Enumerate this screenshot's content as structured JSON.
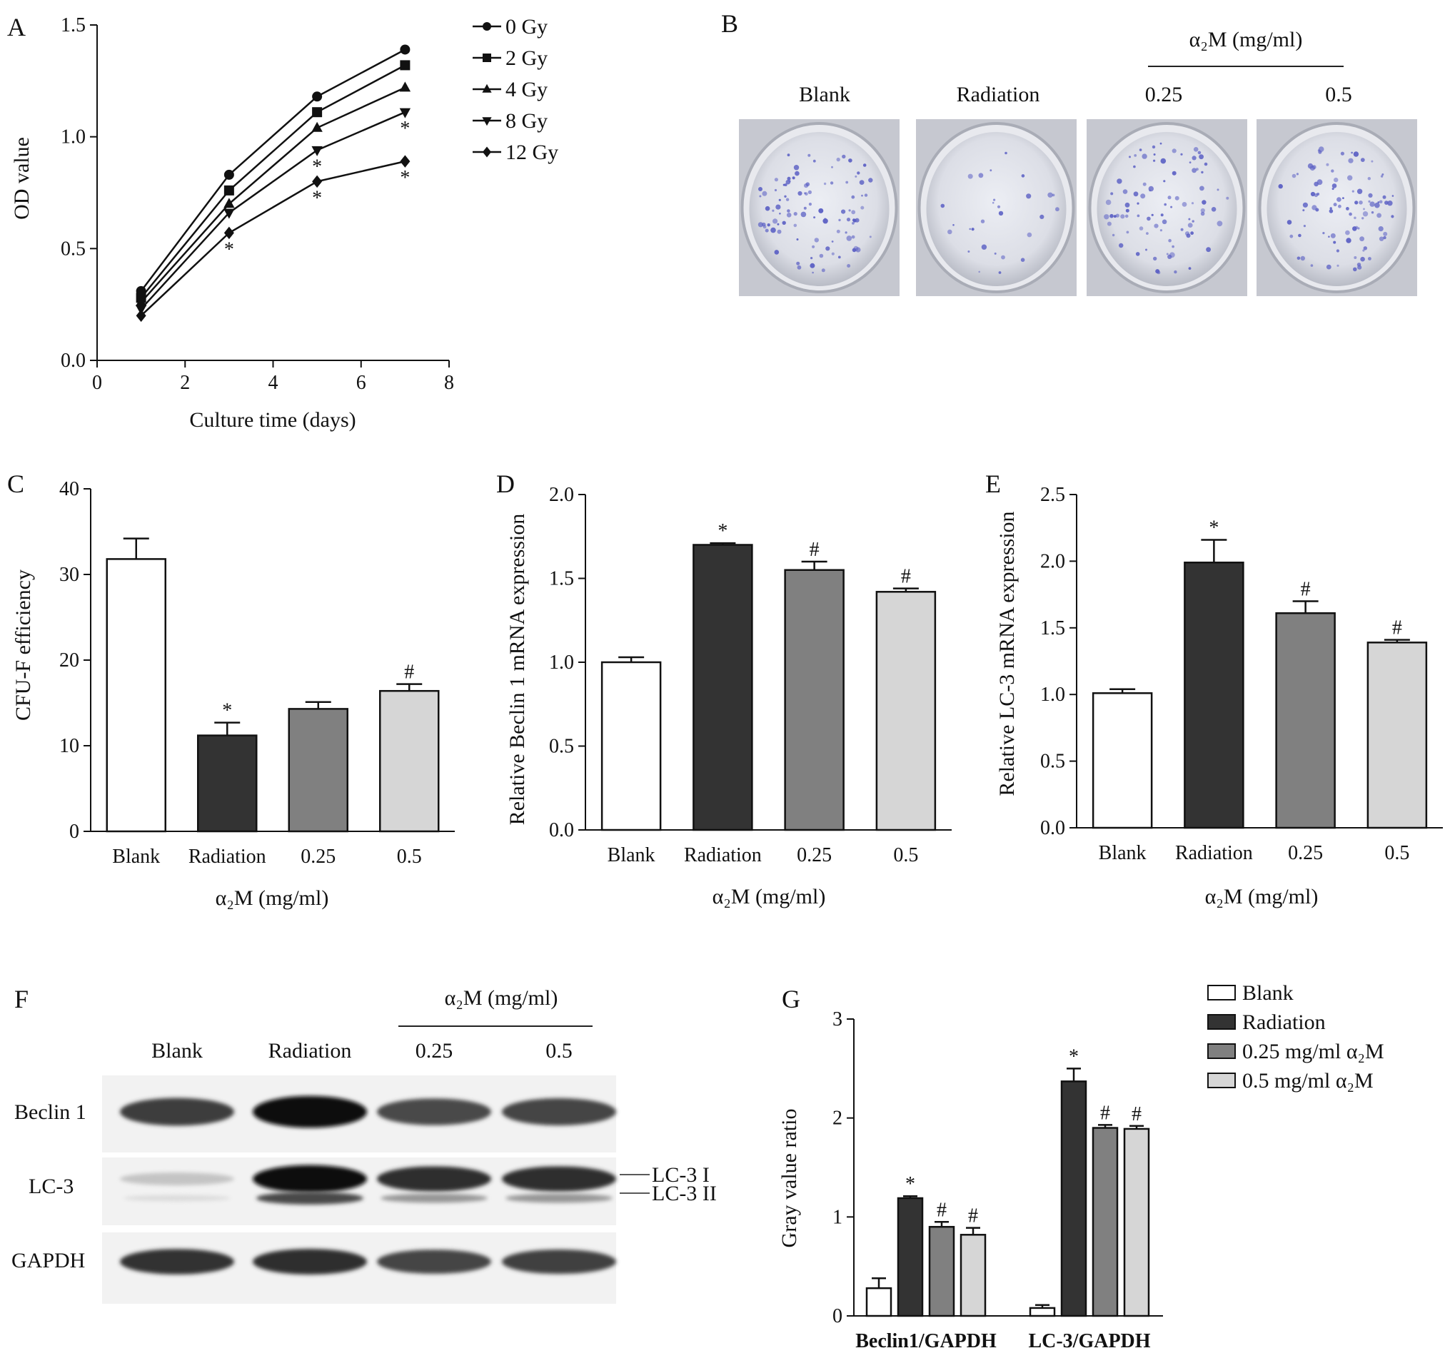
{
  "figure": {
    "panels": {
      "a": {
        "letter": "A"
      },
      "b": {
        "letter": "B",
        "group_header": "α₂M (mg/ml)",
        "dish_labels": [
          "Blank",
          "Radiation",
          "0.25",
          "0.5"
        ],
        "dish_colony_density": [
          0.9,
          0.25,
          0.8,
          0.85
        ],
        "colony_color": "#5a5fc4"
      },
      "c": {
        "letter": "C"
      },
      "d": {
        "letter": "D"
      },
      "e": {
        "letter": "E"
      },
      "f": {
        "letter": "F",
        "group_header": "α₂M (mg/ml)",
        "lane_labels": [
          "Blank",
          "Radiation",
          "0.25",
          "0.5"
        ],
        "row_labels": [
          "Beclin 1",
          "LC-3",
          "GAPDH"
        ],
        "arrow_labels": [
          "LC-3 I",
          "LC-3 II"
        ],
        "band_intensity": {
          "beclin1": [
            0.75,
            0.95,
            0.7,
            0.72
          ],
          "lc3_I": [
            0.15,
            0.95,
            0.82,
            0.82
          ],
          "lc3_II": [
            0.05,
            0.7,
            0.35,
            0.35
          ],
          "gapdh": [
            0.8,
            0.82,
            0.72,
            0.74
          ]
        }
      },
      "g": {
        "letter": "G"
      }
    }
  },
  "chart_data": [
    {
      "panel": "A",
      "type": "line",
      "xlabel": "Culture time (days)",
      "ylabel": "OD value",
      "xlim": [
        0,
        8
      ],
      "ylim": [
        0,
        1.5
      ],
      "xticks": [
        "0",
        "2",
        "4",
        "6",
        "8"
      ],
      "yticks": [
        "0.0",
        "0.5",
        "1.0",
        "1.5"
      ],
      "x": [
        1,
        3,
        5,
        7
      ],
      "series": [
        {
          "name": "0 Gy",
          "marker": "circle",
          "values": [
            0.31,
            0.83,
            1.18,
            1.39
          ],
          "sig": []
        },
        {
          "name": "2 Gy",
          "marker": "square",
          "values": [
            0.28,
            0.76,
            1.11,
            1.32
          ],
          "sig": []
        },
        {
          "name": "4 Gy",
          "marker": "triangle-up",
          "values": [
            0.26,
            0.7,
            1.04,
            1.22
          ],
          "sig": []
        },
        {
          "name": "8 Gy",
          "marker": "triangle-down",
          "values": [
            0.23,
            0.66,
            0.94,
            1.11
          ],
          "sig": [
            "",
            "",
            "*",
            "*"
          ]
        },
        {
          "name": "12 Gy",
          "marker": "diamond",
          "values": [
            0.2,
            0.57,
            0.8,
            0.89
          ],
          "sig": [
            "",
            "*",
            "*",
            "*"
          ]
        }
      ],
      "legend": "right"
    },
    {
      "panel": "C",
      "type": "bar",
      "categories": [
        "Blank",
        "Radiation",
        "0.25",
        "0.5"
      ],
      "values": [
        31.8,
        11.2,
        14.3,
        16.4
      ],
      "errors": [
        2.4,
        1.5,
        0.8,
        0.8
      ],
      "sig": [
        "",
        "*",
        "",
        "#"
      ],
      "colors": [
        "#ffffff",
        "#333333",
        "#808080",
        "#d6d6d6"
      ],
      "ylabel": "CFU-F efficiency",
      "xlabel": "α₂M (mg/ml)",
      "ylim": [
        0,
        40
      ],
      "yticks": [
        "0",
        "10",
        "20",
        "30",
        "40"
      ]
    },
    {
      "panel": "D",
      "type": "bar",
      "categories": [
        "Blank",
        "Radiation",
        "0.25",
        "0.5"
      ],
      "values": [
        1.0,
        1.7,
        1.55,
        1.42
      ],
      "errors": [
        0.03,
        0.01,
        0.05,
        0.02
      ],
      "sig": [
        "",
        "*",
        "#",
        "#"
      ],
      "colors": [
        "#ffffff",
        "#333333",
        "#808080",
        "#d6d6d6"
      ],
      "ylabel": "Relative Beclin 1 mRNA expression",
      "xlabel": "α₂M (mg/ml)",
      "ylim": [
        0,
        2.0
      ],
      "yticks": [
        "0.0",
        "0.5",
        "1.0",
        "1.5",
        "2.0"
      ]
    },
    {
      "panel": "E",
      "type": "bar",
      "categories": [
        "Blank",
        "Radiation",
        "0.25",
        "0.5"
      ],
      "values": [
        1.01,
        1.99,
        1.61,
        1.39
      ],
      "errors": [
        0.03,
        0.17,
        0.09,
        0.02
      ],
      "sig": [
        "",
        "*",
        "#",
        "#"
      ],
      "colors": [
        "#ffffff",
        "#333333",
        "#808080",
        "#d6d6d6"
      ],
      "ylabel": "Relative LC-3 mRNA expression",
      "xlabel": "α₂M (mg/ml)",
      "ylim": [
        0,
        2.5
      ],
      "yticks": [
        "0.0",
        "0.5",
        "1.0",
        "1.5",
        "2.0",
        "2.5"
      ]
    },
    {
      "panel": "G",
      "type": "bar",
      "categories": [
        "Beclin1/GAPDH",
        "LC-3/GAPDH"
      ],
      "series": [
        {
          "name": "Blank",
          "color": "#ffffff",
          "values": [
            0.28,
            0.08
          ],
          "errors": [
            0.1,
            0.03
          ],
          "sig": [
            "",
            ""
          ]
        },
        {
          "name": "Radiation",
          "color": "#333333",
          "values": [
            1.19,
            2.37
          ],
          "errors": [
            0.02,
            0.13
          ],
          "sig": [
            "*",
            "*"
          ]
        },
        {
          "name": "0.25 mg/ml α₂M",
          "color": "#808080",
          "values": [
            0.9,
            1.9
          ],
          "errors": [
            0.05,
            0.03
          ],
          "sig": [
            "#",
            "#"
          ]
        },
        {
          "name": "0.5 mg/ml α₂M",
          "color": "#d6d6d6",
          "values": [
            0.82,
            1.89
          ],
          "errors": [
            0.07,
            0.03
          ],
          "sig": [
            "#",
            "#"
          ]
        }
      ],
      "ylabel": "Gray value ratio",
      "ylim": [
        0,
        3
      ],
      "yticks": [
        "0",
        "1",
        "2",
        "3"
      ],
      "legend": "right"
    }
  ]
}
